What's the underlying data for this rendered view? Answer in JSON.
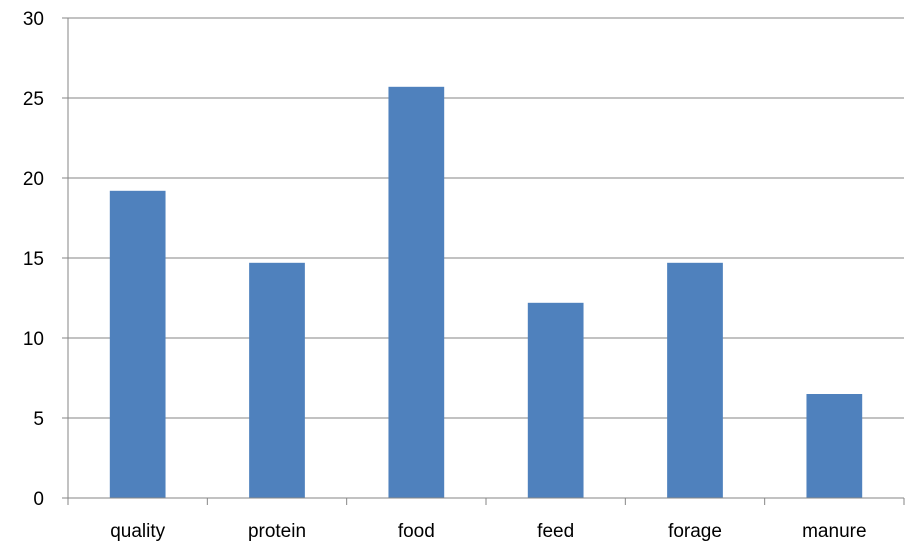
{
  "chart_data": {
    "type": "bar",
    "title": "",
    "xlabel": "",
    "ylabel": "",
    "categories": [
      "quality",
      "protein",
      "food",
      "feed",
      "forage",
      "manure"
    ],
    "values": [
      19.2,
      14.7,
      25.7,
      12.2,
      14.7,
      6.5
    ],
    "ylim": [
      0,
      30
    ],
    "yticks": [
      "0",
      "5",
      "10",
      "15",
      "20",
      "25",
      "30"
    ],
    "grid": true,
    "legend": "none",
    "colors": {
      "bar": "#4F81BD",
      "grid": "#868686",
      "axis": "#868686"
    }
  }
}
